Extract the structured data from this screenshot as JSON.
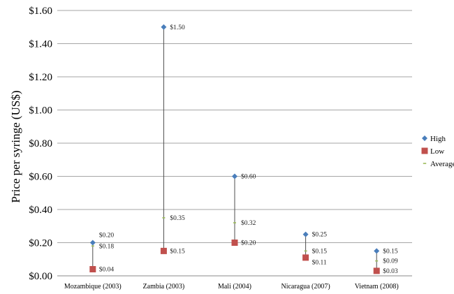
{
  "chart_data": {
    "type": "scatter",
    "title": "",
    "xlabel": "",
    "ylabel": "Price per syringe (US$)",
    "ylim": [
      0,
      1.6
    ],
    "yticks": [
      0,
      0.2,
      0.4,
      0.6,
      0.8,
      1.0,
      1.2,
      1.4,
      1.6
    ],
    "ytick_labels": [
      "$0.00",
      "$0.20",
      "$0.40",
      "$0.60",
      "$0.80",
      "$1.00",
      "$1.20",
      "$1.40",
      "$1.60"
    ],
    "categories": [
      "Mozambique (2003)",
      "Zambia (2003)",
      "Mali (2004)",
      "Nicaragua (2007)",
      "Vietnam (2008)"
    ],
    "series": [
      {
        "name": "High",
        "values": [
          0.2,
          1.5,
          0.6,
          0.25,
          0.15
        ],
        "labels": [
          "$0.20",
          "$1.50",
          "$0.60",
          "$0.25",
          "$0.15"
        ],
        "color": "#4a7ebb",
        "marker": "diamond"
      },
      {
        "name": "Low",
        "values": [
          0.04,
          0.15,
          0.2,
          0.11,
          0.03
        ],
        "labels": [
          "$0.04",
          "$0.15",
          "$0.20",
          "$0.11",
          "$0.03"
        ],
        "color": "#c0504d",
        "marker": "square"
      },
      {
        "name": "Average",
        "values": [
          0.18,
          0.35,
          0.32,
          0.15,
          0.09
        ],
        "labels": [
          "$0.18",
          "$0.35",
          "$0.32",
          "$0.15",
          "$0.09"
        ],
        "color": "#9bbb59",
        "marker": "dash"
      }
    ],
    "grid": true,
    "legend": "right"
  }
}
